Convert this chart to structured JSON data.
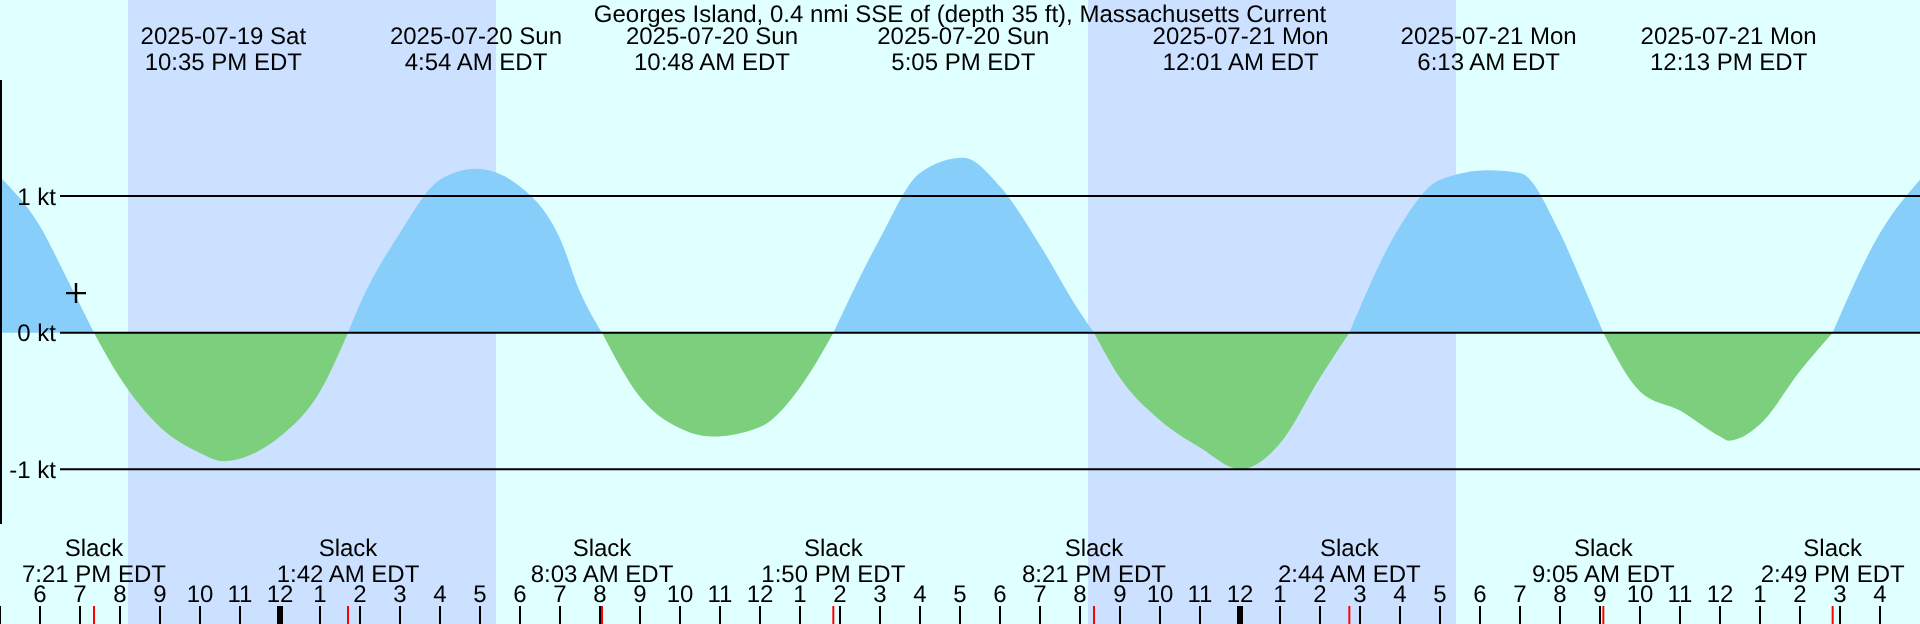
{
  "chart_data": {
    "type": "area",
    "title": "Georges Island, 0.4 nmi SSE of (depth 35 ft), Massachusetts Current",
    "xlim": [
      "2025-07-19T17:00",
      "2025-07-21T17:00"
    ],
    "ylim": [
      -1.4,
      1.85
    ],
    "yticks": [
      {
        "value": 1,
        "label": "1 kt"
      },
      {
        "value": 0,
        "label": "0 kt"
      },
      {
        "value": -1,
        "label": "-1 kt"
      }
    ],
    "grid": "y",
    "xticks": [
      {
        "value": "2025-07-19T17:00",
        "label": null
      },
      {
        "value": "2025-07-19T18:00",
        "label": "6"
      },
      {
        "value": "2025-07-19T19:00",
        "label": "7"
      },
      {
        "value": "2025-07-19T20:00",
        "label": "8"
      },
      {
        "value": "2025-07-19T21:00",
        "label": "9"
      },
      {
        "value": "2025-07-19T22:00",
        "label": "10"
      },
      {
        "value": "2025-07-19T23:00",
        "label": "11"
      },
      {
        "value": "2025-07-20T00:00",
        "label": "12"
      },
      {
        "value": "2025-07-20T01:00",
        "label": "1"
      },
      {
        "value": "2025-07-20T02:00",
        "label": "2"
      },
      {
        "value": "2025-07-20T03:00",
        "label": "3"
      },
      {
        "value": "2025-07-20T04:00",
        "label": "4"
      },
      {
        "value": "2025-07-20T05:00",
        "label": "5"
      },
      {
        "value": "2025-07-20T06:00",
        "label": "6"
      },
      {
        "value": "2025-07-20T07:00",
        "label": "7"
      },
      {
        "value": "2025-07-20T08:00",
        "label": "8"
      },
      {
        "value": "2025-07-20T09:00",
        "label": "9"
      },
      {
        "value": "2025-07-20T10:00",
        "label": "10"
      },
      {
        "value": "2025-07-20T11:00",
        "label": "11"
      },
      {
        "value": "2025-07-20T12:00",
        "label": "12"
      },
      {
        "value": "2025-07-20T13:00",
        "label": "1"
      },
      {
        "value": "2025-07-20T14:00",
        "label": "2"
      },
      {
        "value": "2025-07-20T15:00",
        "label": "3"
      },
      {
        "value": "2025-07-20T16:00",
        "label": "4"
      },
      {
        "value": "2025-07-20T17:00",
        "label": "5"
      },
      {
        "value": "2025-07-20T18:00",
        "label": "6"
      },
      {
        "value": "2025-07-20T19:00",
        "label": "7"
      },
      {
        "value": "2025-07-20T20:00",
        "label": "8"
      },
      {
        "value": "2025-07-20T21:00",
        "label": "9"
      },
      {
        "value": "2025-07-20T22:00",
        "label": "10"
      },
      {
        "value": "2025-07-20T23:00",
        "label": "11"
      },
      {
        "value": "2025-07-21T00:00",
        "label": "12"
      },
      {
        "value": "2025-07-21T01:00",
        "label": "1"
      },
      {
        "value": "2025-07-21T02:00",
        "label": "2"
      },
      {
        "value": "2025-07-21T03:00",
        "label": "3"
      },
      {
        "value": "2025-07-21T04:00",
        "label": "4"
      },
      {
        "value": "2025-07-21T05:00",
        "label": "5"
      },
      {
        "value": "2025-07-21T06:00",
        "label": "6"
      },
      {
        "value": "2025-07-21T07:00",
        "label": "7"
      },
      {
        "value": "2025-07-21T08:00",
        "label": "8"
      },
      {
        "value": "2025-07-21T09:00",
        "label": "9"
      },
      {
        "value": "2025-07-21T10:00",
        "label": "10"
      },
      {
        "value": "2025-07-21T11:00",
        "label": "11"
      },
      {
        "value": "2025-07-21T12:00",
        "label": "12"
      },
      {
        "value": "2025-07-21T13:00",
        "label": "1"
      },
      {
        "value": "2025-07-21T14:00",
        "label": "2"
      },
      {
        "value": "2025-07-21T15:00",
        "label": "3"
      },
      {
        "value": "2025-07-21T16:00",
        "label": "4"
      }
    ],
    "bands": [
      {
        "axis": "x",
        "from": "2025-07-19T20:12",
        "to": "2025-07-20T05:24",
        "color": "#cce0ff"
      },
      {
        "axis": "x",
        "from": "2025-07-20T20:12",
        "to": "2025-07-21T05:24",
        "color": "#cce0ff"
      }
    ],
    "series": [
      {
        "color": "#87cefa",
        "x": [
          "2025-07-19T17:00",
          "2025-07-19T18:00",
          "2025-07-19T18:40",
          "2025-07-19T19:21",
          null,
          "2025-07-20T01:42",
          "2025-07-20T02:00",
          "2025-07-20T03:00",
          "2025-07-20T04:00",
          "2025-07-20T04:54",
          "2025-07-20T06:00",
          "2025-07-20T07:00",
          "2025-07-20T07:30",
          "2025-07-20T08:03",
          null,
          "2025-07-20T13:50",
          "2025-07-20T15:00",
          "2025-07-20T16:00",
          "2025-07-20T17:05",
          "2025-07-20T18:00",
          "2025-07-20T19:00",
          "2025-07-20T20:00",
          "2025-07-20T20:21",
          null,
          "2025-07-21T02:44",
          "2025-07-21T04:00",
          "2025-07-21T05:00",
          "2025-07-21T06:13",
          "2025-07-21T07:00",
          "2025-07-21T08:00",
          "2025-07-21T08:30",
          "2025-07-21T09:05",
          null,
          "2025-07-21T14:49",
          "2025-07-21T16:00",
          "2025-07-21T17:00"
        ],
        "values": [
          1.14,
          0.78,
          0.4,
          0,
          null,
          0,
          0.21,
          0.73,
          1.12,
          1.2,
          1.07,
          0.69,
          0.3,
          0,
          null,
          0,
          0.69,
          1.17,
          1.28,
          1.07,
          0.64,
          0.15,
          0,
          null,
          0,
          0.78,
          1.12,
          1.19,
          1.17,
          0.73,
          0.4,
          0,
          null,
          0,
          0.73,
          1.12
        ]
      },
      {
        "color": "#7ccf7c",
        "x": [
          "2025-07-19T19:21",
          "2025-07-19T20:00",
          "2025-07-19T21:00",
          "2025-07-19T22:00",
          "2025-07-19T22:35",
          "2025-07-19T23:30",
          "2025-07-20T00:00",
          "2025-07-20T01:00",
          "2025-07-20T01:42",
          null,
          "2025-07-20T08:03",
          "2025-07-20T09:00",
          "2025-07-20T10:00",
          "2025-07-20T10:48",
          "2025-07-20T12:00",
          "2025-07-20T13:00",
          "2025-07-20T13:50",
          null,
          "2025-07-20T20:21",
          "2025-07-20T21:00",
          "2025-07-20T22:00",
          "2025-07-20T23:00",
          "2025-07-21T00:01",
          "2025-07-21T01:00",
          "2025-07-21T02:00",
          "2025-07-21T02:44",
          null,
          "2025-07-21T09:05",
          "2025-07-21T10:00",
          "2025-07-21T11:00",
          "2025-07-21T12:00",
          "2025-07-21T12:13",
          "2025-07-21T13:00",
          "2025-07-21T14:00",
          "2025-07-21T14:49"
        ],
        "values": [
          0,
          -0.33,
          -0.69,
          -0.88,
          -0.94,
          -0.86,
          -0.76,
          -0.43,
          0,
          null,
          0,
          -0.47,
          -0.7,
          -0.76,
          -0.69,
          -0.4,
          0,
          null,
          0,
          -0.33,
          -0.64,
          -0.84,
          -1.0,
          -0.81,
          -0.33,
          0,
          null,
          0,
          -0.43,
          -0.57,
          -0.76,
          -0.79,
          -0.67,
          -0.28,
          0
        ]
      },
      {
        "type": "scatter",
        "color": "#000000",
        "marker": "cross",
        "x": [
          "2025-07-19T18:54"
        ],
        "values": [
          0.29
        ]
      }
    ],
    "annotations": [
      "2025-07-19 Sat\n10:35 PM EDT",
      "2025-07-20 Sun\n4:54 AM EDT",
      "2025-07-20 Sun\n10:48 AM EDT",
      "2025-07-20 Sun\n5:05 PM EDT",
      "2025-07-21 Mon\n12:01 AM EDT",
      "2025-07-21 Mon\n6:13 AM EDT",
      "2025-07-21 Mon\n12:13 PM EDT",
      "Slack\n7:21 PM EDT",
      "Slack\n1:42 AM EDT",
      "Slack\n8:03 AM EDT",
      "Slack\n1:50 PM EDT",
      "Slack\n8:21 PM EDT",
      "Slack\n2:44 AM EDT",
      "Slack\n9:05 AM EDT",
      "Slack\n2:49 PM EDT"
    ]
  }
}
